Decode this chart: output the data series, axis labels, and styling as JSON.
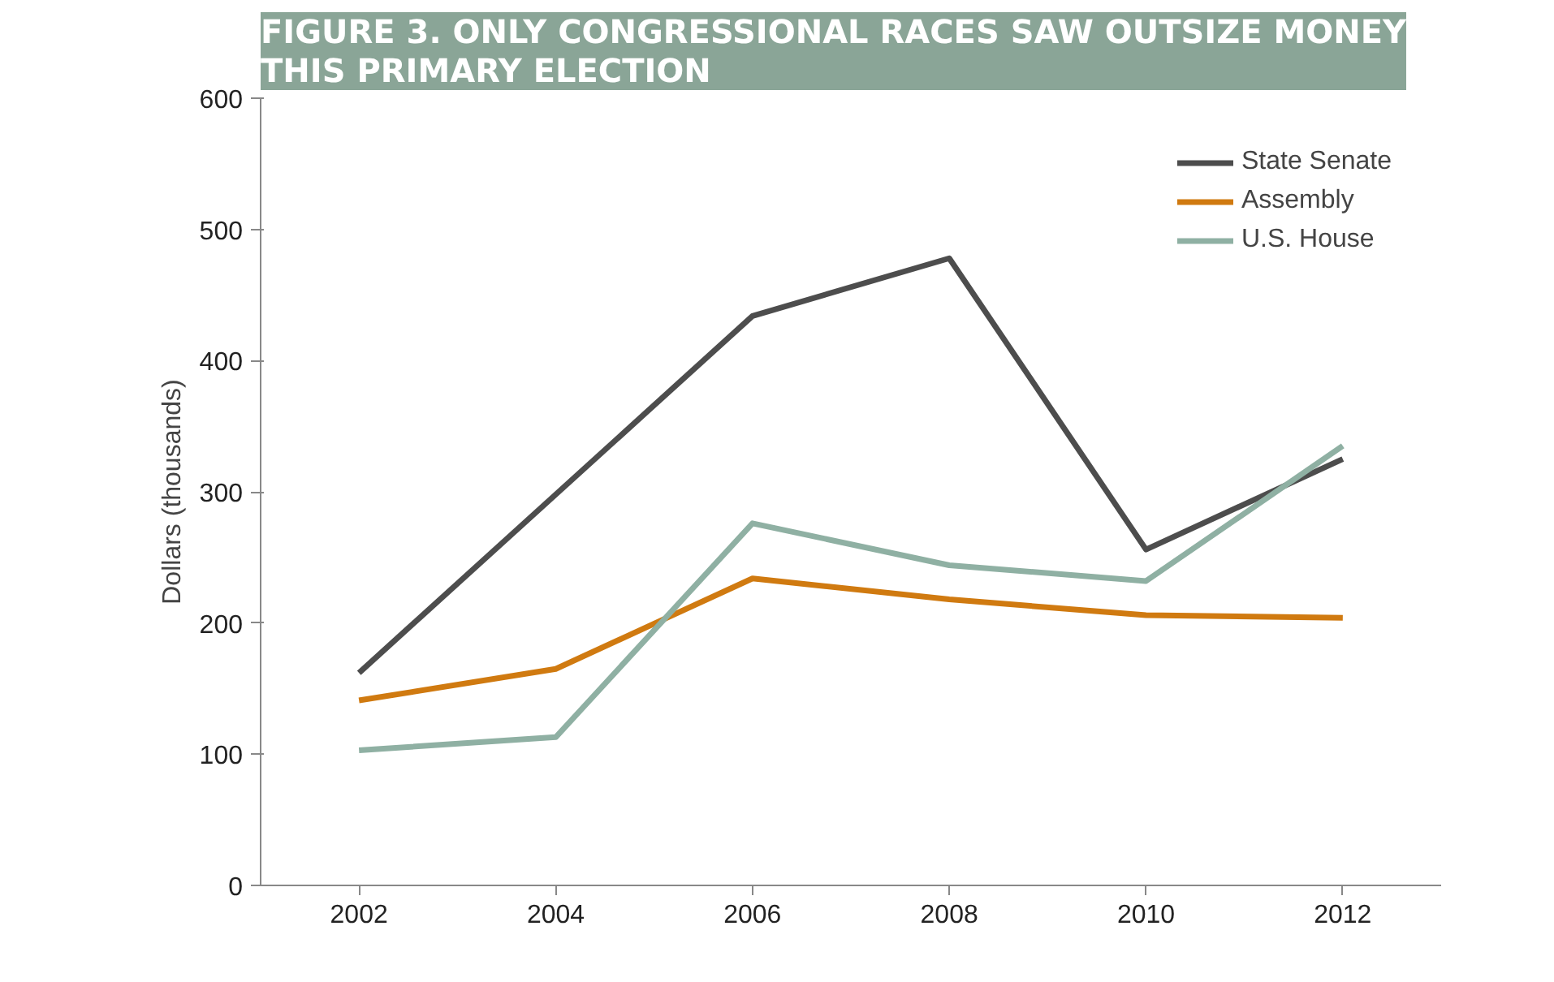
{
  "chart_data": {
    "type": "line",
    "title": "FIGURE 3. ONLY CONGRESSIONAL RACES SAW OUTSIZE MONEY\nTHIS PRIMARY ELECTION",
    "ylabel": "Dollars (thousands)",
    "categories": [
      "2002",
      "2004",
      "2006",
      "2008",
      "2010",
      "2012"
    ],
    "ylim": [
      0,
      600
    ],
    "yticks": [
      0,
      100,
      200,
      300,
      400,
      500,
      600
    ],
    "grid": false,
    "legend": "top right",
    "marker": "none",
    "line_style": "solid",
    "series": [
      {
        "name": "State Senate",
        "color": "#4d4d4d",
        "values": [
          162,
          298,
          434,
          478,
          256,
          325
        ]
      },
      {
        "name": "Assembly",
        "color": "#d07a10",
        "values": [
          141,
          165,
          234,
          218,
          206,
          204
        ]
      },
      {
        "name": "U.S. House",
        "color": "#8fb0a3",
        "values": [
          103,
          113,
          276,
          244,
          232,
          335
        ]
      }
    ]
  }
}
